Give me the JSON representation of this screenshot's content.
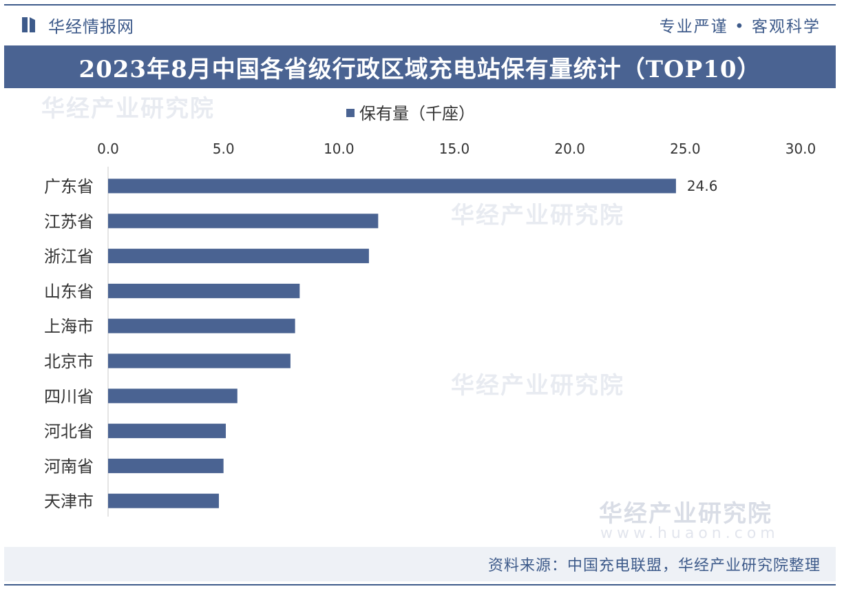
{
  "header": {
    "brand_name": "华经情报网",
    "motto": "专业严谨 • 客观科学"
  },
  "title": "2023年8月中国各省级行政区域充电站保有量统计（TOP10）",
  "watermark": {
    "name": "华经产业研究院",
    "url": "www.huaon.com"
  },
  "footer": {
    "source": "资料来源：中国充电联盟，华经产业研究院整理"
  },
  "colors": {
    "accent": "#4a6392",
    "bar": "#4a6392",
    "text": "#3d5a8a",
    "footer_bg": "#eef1f6"
  },
  "chart_data": {
    "type": "bar",
    "orientation": "horizontal",
    "categories": [
      "广东省",
      "江苏省",
      "浙江省",
      "山东省",
      "上海市",
      "北京市",
      "四川省",
      "河北省",
      "河南省",
      "天津市"
    ],
    "series": [
      {
        "name": "保有量（千座）",
        "values": [
          24.6,
          11.7,
          11.3,
          8.3,
          8.1,
          7.9,
          5.6,
          5.1,
          5.0,
          4.8
        ]
      }
    ],
    "data_labels": [
      {
        "category": "广东省",
        "text": "24.6"
      }
    ],
    "xlim": [
      0,
      30
    ],
    "x_ticks": [
      "0.0",
      "5.0",
      "10.0",
      "15.0",
      "20.0",
      "25.0",
      "30.0"
    ],
    "x_axis_position": "top",
    "legend_position": "top-center",
    "grid": false
  }
}
